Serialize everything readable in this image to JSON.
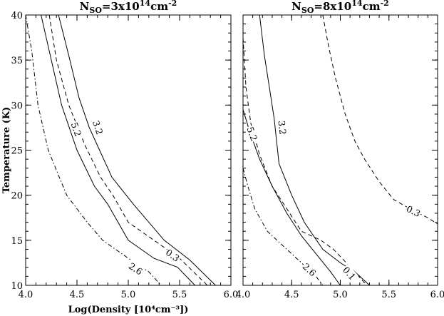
{
  "chart_data": [
    {
      "type": "line",
      "title": {
        "prefix": "N",
        "sub": "SO",
        "mid": "=3x10",
        "sup1": "14",
        "mid2": "cm",
        "sup2": "-2"
      },
      "xlabel": "Log(Density [10⁴cm⁻³])",
      "ylabel": "Temperature (K)",
      "xlim": [
        4.0,
        6.0
      ],
      "ylim": [
        10,
        40
      ],
      "xticks": [
        "4.0",
        "4.5",
        "5.0",
        "5.5",
        "6.0"
      ],
      "yticks": [
        "10",
        "15",
        "20",
        "25",
        "30",
        "35",
        "40"
      ],
      "series": [
        {
          "name": "3.2",
          "style": "solid",
          "x": [
            4.32,
            4.42,
            4.52,
            4.62,
            4.72,
            4.84,
            5.05,
            5.35,
            5.6,
            5.85
          ],
          "y": [
            40,
            35.5,
            30.8,
            27.5,
            25,
            22,
            19,
            15,
            12.8,
            10
          ],
          "label": {
            "text": "3.2",
            "x": 4.7,
            "y": 27.5
          }
        },
        {
          "name": "0.3",
          "style": "dashed",
          "x": [
            4.23,
            4.3,
            4.42,
            4.58,
            4.73,
            4.85,
            5.0,
            5.25,
            5.5,
            5.77
          ],
          "y": [
            40,
            35,
            30,
            25.5,
            22,
            20,
            17,
            15,
            13,
            10
          ],
          "label": {
            "text": "0.3",
            "x": 5.43,
            "y": 13.3
          }
        },
        {
          "name": "5.2",
          "style": "solid",
          "x": [
            4.15,
            4.25,
            4.35,
            4.5,
            4.67,
            4.8,
            5.0,
            5.25,
            5.48,
            5.65
          ],
          "y": [
            40,
            35,
            30,
            25,
            21,
            19,
            15,
            13,
            12,
            10
          ],
          "label": {
            "text": "5.2",
            "x": 4.49,
            "y": 27.3
          }
        },
        {
          "name": "2.6",
          "style": "dashdot",
          "x": [
            4.0,
            4.06,
            4.12,
            4.22,
            4.4,
            4.6,
            4.75,
            5.0,
            5.2,
            5.32
          ],
          "y": [
            40,
            36,
            30,
            25,
            20,
            17,
            15,
            13,
            11.5,
            10
          ],
          "label": {
            "text": "2.6",
            "x": 5.07,
            "y": 11.8
          }
        }
      ]
    },
    {
      "type": "line",
      "title": {
        "prefix": "N",
        "sub": "SO",
        "mid": "=8x10",
        "sup1": "14",
        "mid2": "cm",
        "sup2": "-2"
      },
      "xlim": [
        4.0,
        6.0
      ],
      "ylim": [
        10,
        40
      ],
      "xticks": [
        "4.0",
        "4.5",
        "5.0",
        "5.5",
        "6.0"
      ],
      "yticks": [
        "10",
        "15",
        "20",
        "25",
        "30",
        "35",
        "40"
      ],
      "series": [
        {
          "name": "3.2",
          "style": "solid",
          "x": [
            4.17,
            4.22,
            4.27,
            4.32,
            4.37,
            4.5,
            4.63,
            4.82,
            5.0,
            5.15,
            5.3
          ],
          "y": [
            40,
            35.5,
            32,
            28.5,
            23.5,
            20,
            17,
            14,
            12.5,
            11.5,
            10
          ],
          "label": {
            "text": "3.2",
            "x": 4.4,
            "y": 27.5
          }
        },
        {
          "name": "0.1",
          "style": "dashed",
          "x": [
            4.0,
            4.03,
            4.08,
            4.17,
            4.3,
            4.45,
            4.6,
            4.8,
            4.93,
            5.15,
            5.27
          ],
          "y": [
            37.5,
            32,
            28,
            24.5,
            21,
            18.5,
            16,
            15,
            14,
            11.5,
            10
          ],
          "label": {
            "text": "0.1",
            "x": 5.09,
            "y": 11.3
          }
        },
        {
          "name": "5.2",
          "style": "solid",
          "x": [
            4.0,
            4.07,
            4.17,
            4.3,
            4.45,
            4.6,
            4.75,
            4.9,
            5.0
          ],
          "y": [
            29.5,
            27,
            24,
            21,
            18,
            15.5,
            13.5,
            11.5,
            10
          ],
          "label": {
            "text": "5.2",
            "x": 4.09,
            "y": 26.8
          }
        },
        {
          "name": "2.6",
          "style": "dashdot",
          "x": [
            4.0,
            4.05,
            4.12,
            4.25,
            4.45,
            4.6,
            4.75,
            4.82
          ],
          "y": [
            23,
            21,
            18.5,
            16,
            14,
            12.5,
            11,
            10
          ],
          "label": {
            "text": "2.6",
            "x": 4.68,
            "y": 11.7
          }
        },
        {
          "name": "0.3",
          "style": "dashed",
          "x": [
            4.82,
            4.88,
            4.95,
            5.05,
            5.15,
            5.25,
            5.4,
            5.55,
            5.75,
            5.9,
            6.0
          ],
          "y": [
            40,
            36.5,
            33,
            29,
            26,
            24,
            21.5,
            19.5,
            18.3,
            17.5,
            16.8
          ],
          "label": {
            "text": "0.3",
            "x": 5.75,
            "y": 18.2
          }
        }
      ]
    }
  ]
}
